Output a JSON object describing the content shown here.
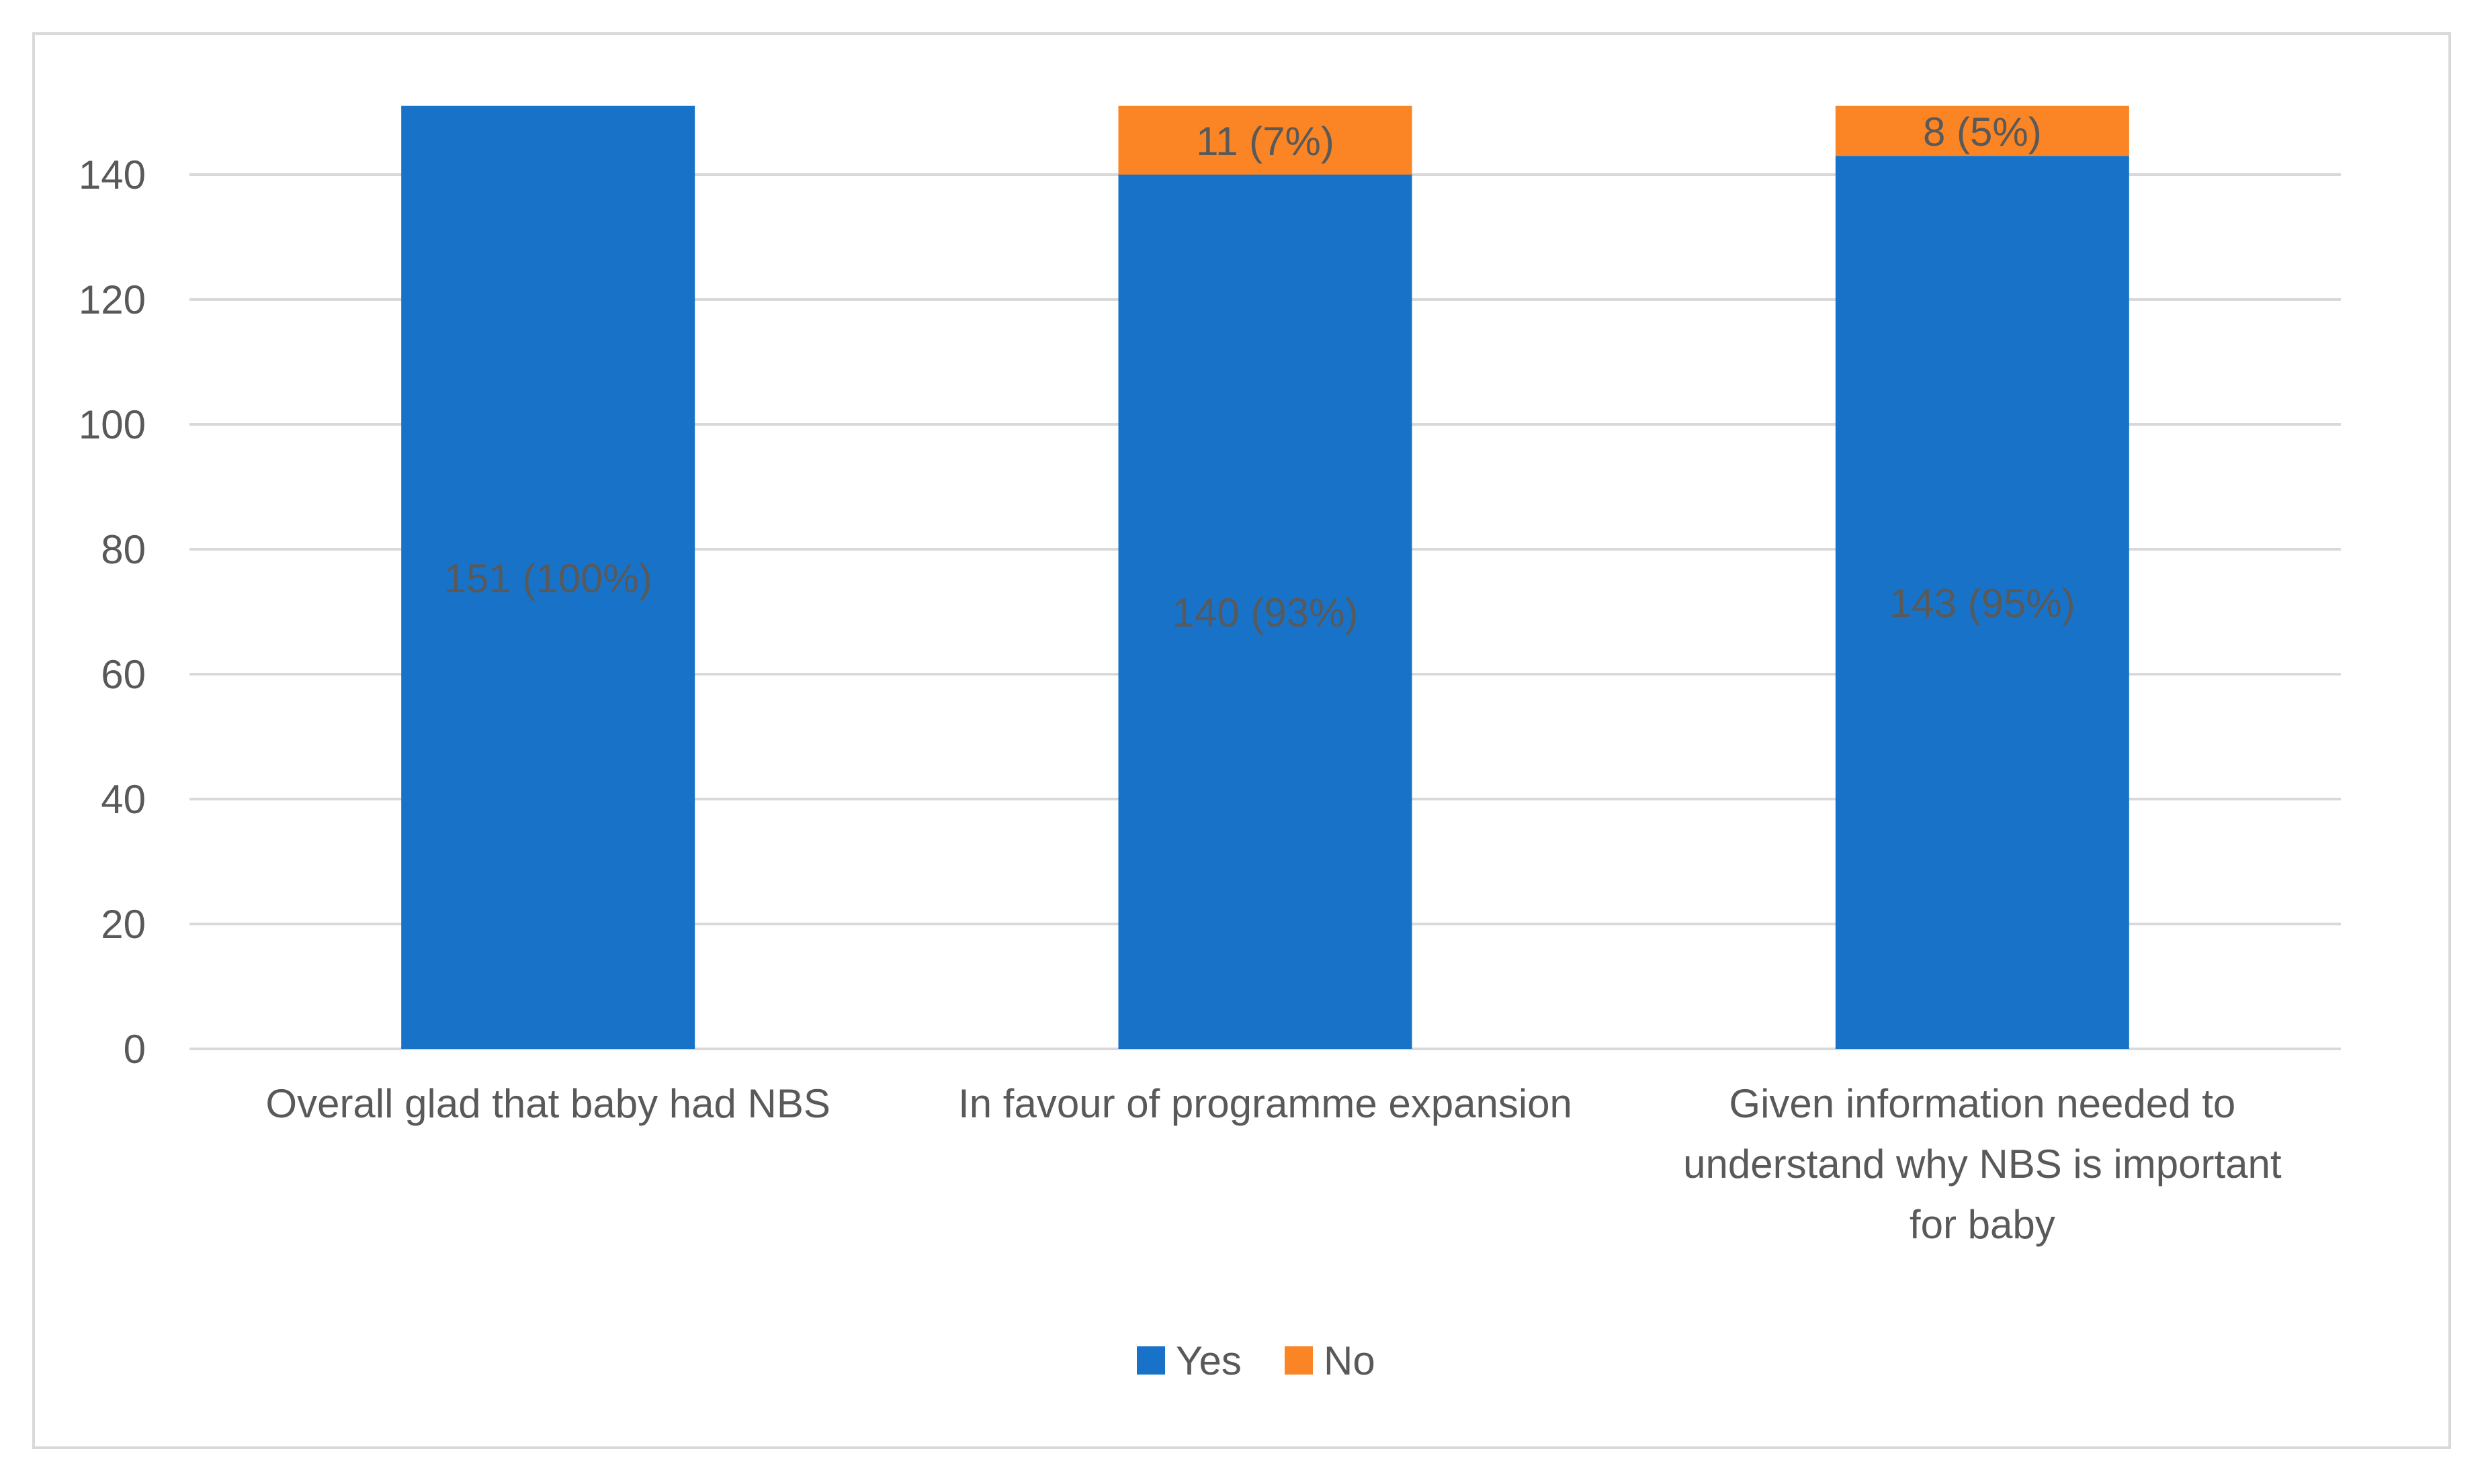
{
  "chart_data": {
    "type": "bar",
    "stacked": true,
    "categories": [
      [
        "Overall glad that baby had NBS"
      ],
      [
        "In favour of programme expansion"
      ],
      [
        "Given information needed to",
        "understand why NBS is important",
        "for baby"
      ]
    ],
    "series": [
      {
        "name": "Yes",
        "color": "#1873c8",
        "values": [
          151,
          140,
          143
        ],
        "labels": [
          "151 (100%)",
          "140 (93%)",
          "143 (95%)"
        ]
      },
      {
        "name": "No",
        "color": "#fb8424",
        "values": [
          0,
          11,
          8
        ],
        "labels": [
          "",
          "11 (7%)",
          "8 (5%)"
        ]
      }
    ],
    "y_ticks": [
      "0",
      "20",
      "40",
      "60",
      "80",
      "100",
      "120",
      "140"
    ],
    "ylim": [
      0,
      151
    ],
    "grid": true,
    "legend_position": "bottom"
  }
}
